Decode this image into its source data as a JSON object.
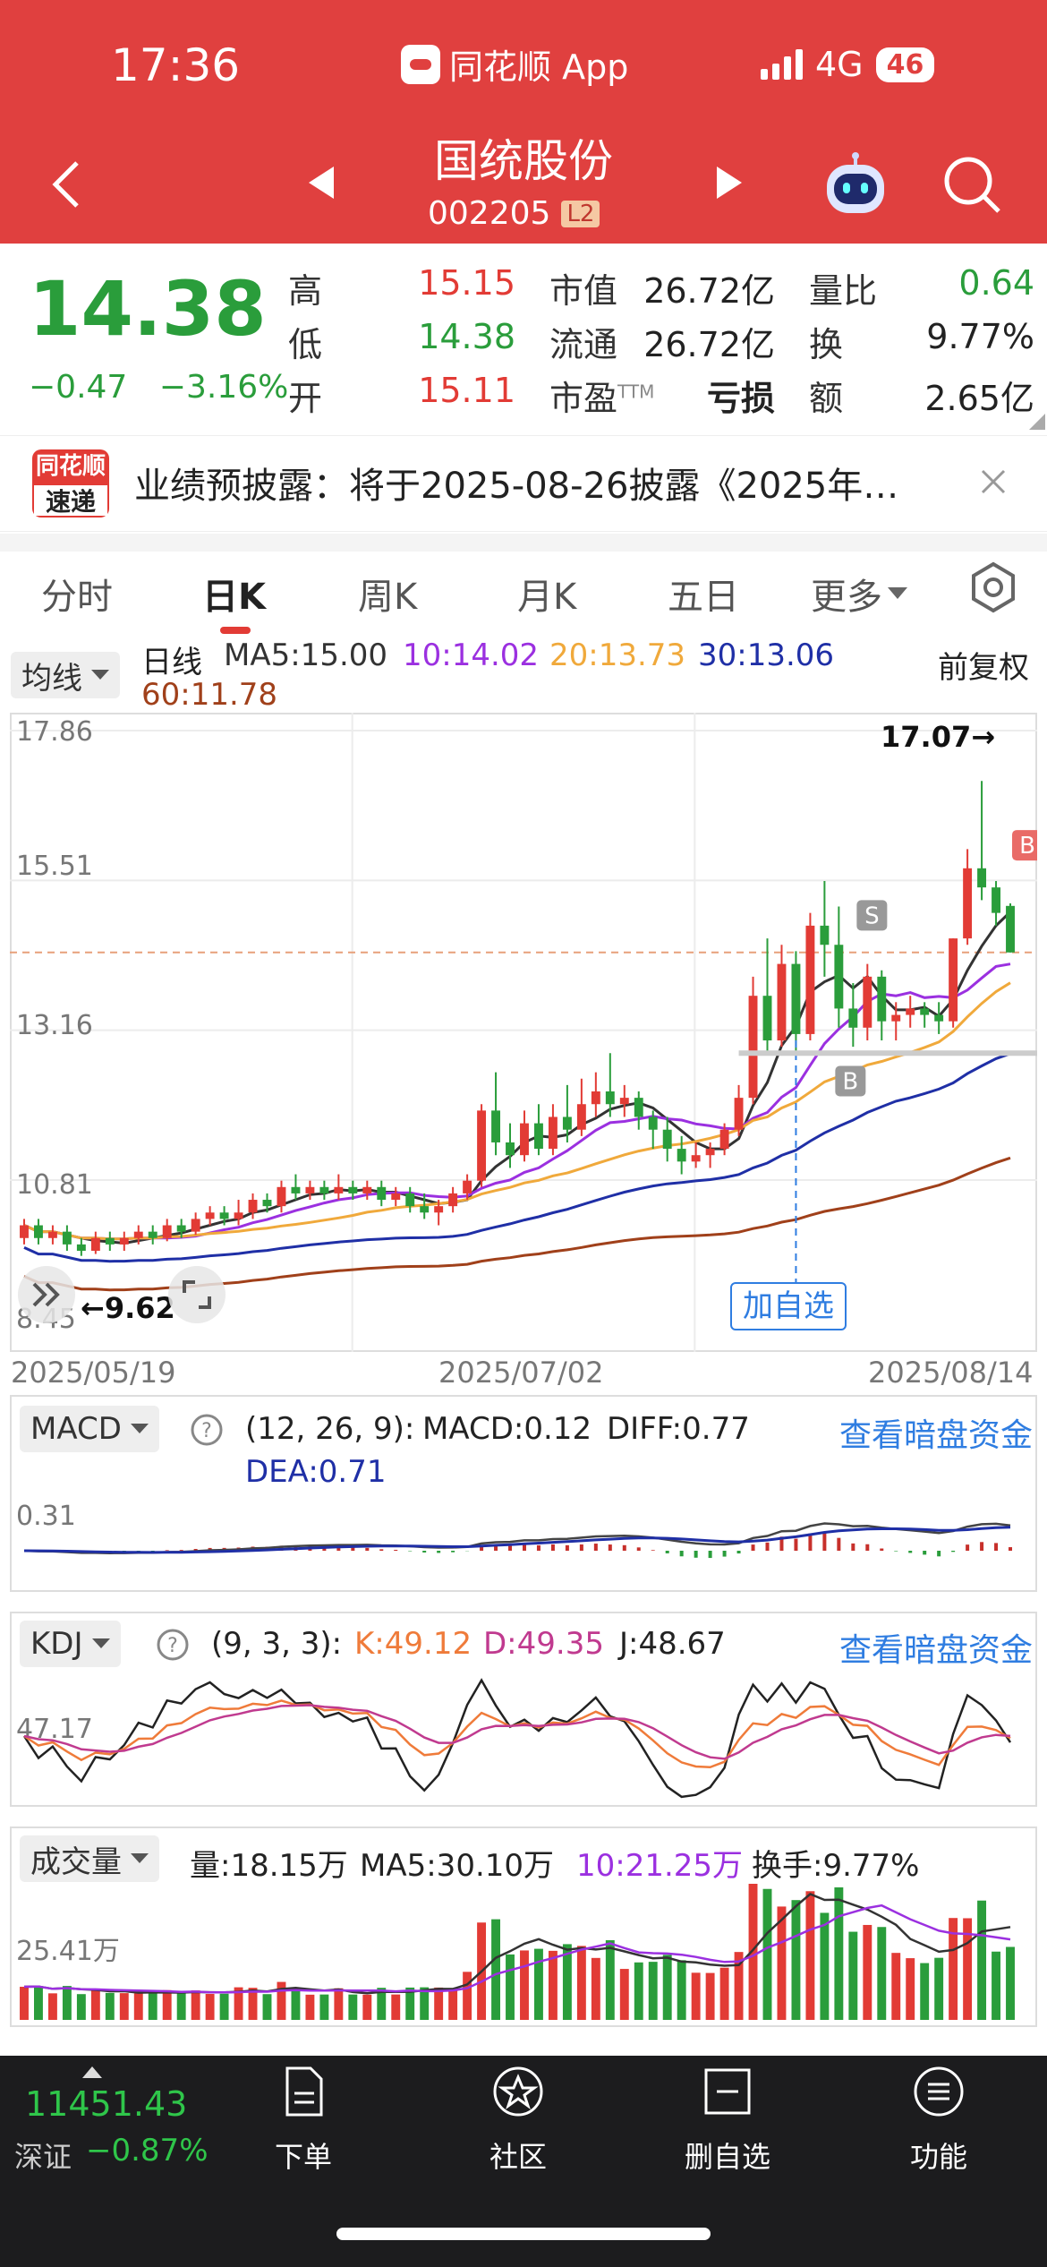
{
  "status_bar": {
    "time": "17:36",
    "app": "同花顺 App",
    "network": "4G",
    "battery": "46"
  },
  "header": {
    "name": "国统股份",
    "code": "002205",
    "level": "L2"
  },
  "quote": {
    "price": "14.38",
    "change": "−0.47",
    "change_pct": "−3.16%",
    "cols": [
      {
        "l1": "高",
        "v1": "15.15",
        "l2": "低",
        "v2": "14.38",
        "l3": "开",
        "v3": "15.11"
      },
      {
        "l1": "市值",
        "v1": "26.72亿",
        "l2": "流通",
        "v2": "26.72亿",
        "l3": "市盈",
        "l3_sup": "TTM",
        "v3": "亏损"
      },
      {
        "l1": "量比",
        "v1": "0.64",
        "l2": "换",
        "v2": "9.77%",
        "l3": "额",
        "v3": "2.65亿"
      }
    ]
  },
  "banner": {
    "icon_top": "同花顺",
    "icon_bottom": "速递",
    "text": "业绩预披露：将于2025-08-26披露《2025年…"
  },
  "tabs": [
    "分时",
    "日K",
    "周K",
    "月K",
    "五日",
    "更多"
  ],
  "kline": {
    "selector": "均线",
    "period": "日线",
    "ma5": "MA5:15.00",
    "ma10": "10:14.02",
    "ma20": "20:13.73",
    "ma30": "30:13.06",
    "ma60": "60:11.78",
    "adjust": "前复权",
    "y_labels": [
      "17.86",
      "15.51",
      "13.16",
      "10.81",
      "8.45"
    ],
    "high_note": "17.07→",
    "low_note": "←9.62",
    "add_button": "加自选",
    "dates": [
      "2025/05/19",
      "2025/07/02",
      "2025/08/14"
    ],
    "marker_s": "S",
    "marker_b": "B"
  },
  "macd": {
    "selector": "MACD",
    "params": "(12, 26, 9):",
    "macd": "MACD:0.12",
    "diff": "DIFF:0.77",
    "dea": "DEA:0.71",
    "y_label": "0.31",
    "link": "查看暗盘资金"
  },
  "kdj": {
    "selector": "KDJ",
    "params": "(9, 3, 3):",
    "k": "K:49.12",
    "d": "D:49.35",
    "j": "J:48.67",
    "y_label": "47.17",
    "link": "查看暗盘资金"
  },
  "volume": {
    "selector": "成交量",
    "vol": "量:18.15万",
    "ma5": "MA5:30.10万",
    "ma10": "10:21.25万",
    "turnover": "换手:9.77%",
    "y_label": "25.41万"
  },
  "bottom": {
    "index_value": "11451.43",
    "index_name": "深证",
    "index_change": "−0.87%",
    "nav": [
      "下单",
      "社区",
      "删自选",
      "功能"
    ]
  },
  "chart_data": {
    "type": "candlestick",
    "title": "日线",
    "ylim": [
      8.45,
      17.86
    ],
    "x_labels": [
      "2025/05/19",
      "2025/07/02",
      "2025/08/14"
    ],
    "series": [
      {
        "name": "MA5",
        "value": 15.0
      },
      {
        "name": "10",
        "value": 14.02
      },
      {
        "name": "20",
        "value": 13.73
      },
      {
        "name": "30",
        "value": 13.06
      },
      {
        "name": "60",
        "value": 11.78
      }
    ],
    "candles": [
      [
        9.9,
        10.1,
        9.8,
        10.2
      ],
      [
        10.1,
        9.9,
        9.8,
        10.2
      ],
      [
        9.9,
        10.0,
        9.8,
        10.1
      ],
      [
        10.0,
        9.8,
        9.7,
        10.1
      ],
      [
        9.8,
        9.7,
        9.62,
        9.9
      ],
      [
        9.7,
        9.9,
        9.65,
        10.0
      ],
      [
        9.9,
        9.8,
        9.7,
        10.0
      ],
      [
        9.8,
        9.9,
        9.7,
        10.0
      ],
      [
        9.9,
        10.0,
        9.8,
        10.1
      ],
      [
        10.0,
        9.9,
        9.8,
        10.1
      ],
      [
        9.9,
        10.1,
        9.85,
        10.2
      ],
      [
        10.1,
        10.0,
        9.9,
        10.2
      ],
      [
        10.0,
        10.2,
        9.95,
        10.3
      ],
      [
        10.2,
        10.3,
        10.1,
        10.4
      ],
      [
        10.3,
        10.2,
        10.1,
        10.4
      ],
      [
        10.2,
        10.3,
        10.1,
        10.5
      ],
      [
        10.3,
        10.5,
        10.2,
        10.6
      ],
      [
        10.5,
        10.4,
        10.3,
        10.6
      ],
      [
        10.4,
        10.7,
        10.3,
        10.8
      ],
      [
        10.7,
        10.6,
        10.5,
        10.9
      ],
      [
        10.6,
        10.7,
        10.5,
        10.8
      ],
      [
        10.7,
        10.6,
        10.5,
        10.8
      ],
      [
        10.6,
        10.7,
        10.5,
        10.9
      ],
      [
        10.7,
        10.6,
        10.5,
        10.8
      ],
      [
        10.6,
        10.7,
        10.5,
        10.8
      ],
      [
        10.7,
        10.5,
        10.4,
        10.8
      ],
      [
        10.5,
        10.6,
        10.4,
        10.7
      ],
      [
        10.6,
        10.4,
        10.3,
        10.7
      ],
      [
        10.4,
        10.3,
        10.2,
        10.6
      ],
      [
        10.3,
        10.4,
        10.1,
        10.5
      ],
      [
        10.4,
        10.6,
        10.3,
        10.7
      ],
      [
        10.6,
        10.8,
        10.5,
        10.9
      ],
      [
        10.8,
        11.9,
        10.7,
        12.0
      ],
      [
        11.9,
        11.4,
        11.2,
        12.5
      ],
      [
        11.4,
        11.2,
        11.0,
        11.7
      ],
      [
        11.2,
        11.7,
        11.1,
        11.9
      ],
      [
        11.7,
        11.3,
        11.2,
        12.0
      ],
      [
        11.3,
        11.8,
        11.2,
        12.0
      ],
      [
        11.8,
        11.6,
        11.4,
        12.3
      ],
      [
        11.6,
        12.0,
        11.5,
        12.4
      ],
      [
        12.0,
        12.2,
        11.8,
        12.5
      ],
      [
        12.2,
        12.0,
        11.8,
        12.8
      ],
      [
        12.0,
        12.1,
        11.8,
        12.3
      ],
      [
        12.1,
        11.8,
        11.6,
        12.2
      ],
      [
        11.8,
        11.6,
        11.3,
        11.9
      ],
      [
        11.6,
        11.3,
        11.1,
        11.8
      ],
      [
        11.3,
        11.1,
        10.9,
        11.5
      ],
      [
        11.1,
        11.2,
        11.0,
        11.4
      ],
      [
        11.2,
        11.3,
        11.0,
        11.4
      ],
      [
        11.3,
        11.6,
        11.2,
        11.7
      ],
      [
        11.6,
        12.1,
        11.5,
        12.3
      ],
      [
        12.1,
        13.7,
        12.0,
        14.0
      ],
      [
        13.7,
        13.0,
        12.8,
        14.6
      ],
      [
        13.0,
        14.2,
        12.9,
        14.5
      ],
      [
        14.2,
        13.1,
        12.8,
        14.4
      ],
      [
        13.1,
        14.8,
        13.0,
        15.0
      ],
      [
        14.8,
        14.5,
        14.0,
        15.5
      ],
      [
        14.5,
        13.5,
        13.2,
        15.1
      ],
      [
        13.5,
        13.2,
        12.9,
        13.9
      ],
      [
        13.2,
        14.0,
        13.0,
        14.2
      ],
      [
        14.0,
        13.3,
        13.0,
        14.1
      ],
      [
        13.3,
        13.4,
        13.0,
        13.6
      ],
      [
        13.4,
        13.5,
        13.2,
        13.7
      ],
      [
        13.5,
        13.4,
        13.2,
        13.6
      ],
      [
        13.4,
        13.3,
        13.1,
        13.6
      ],
      [
        13.3,
        14.6,
        13.2,
        14.6
      ],
      [
        14.6,
        15.7,
        14.5,
        16.0
      ],
      [
        15.7,
        15.4,
        15.2,
        17.07
      ],
      [
        15.4,
        15.0,
        14.8,
        15.5
      ],
      [
        15.11,
        14.38,
        14.38,
        15.15
      ]
    ]
  }
}
